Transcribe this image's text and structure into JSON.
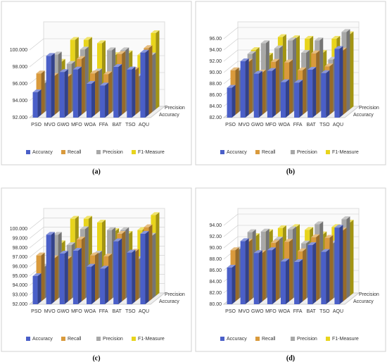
{
  "chart_data": [
    {
      "type": "bar",
      "panel_label": "(a)",
      "categories": [
        "PSO",
        "MVO",
        "GWO",
        "MFO",
        "WOA",
        "FFA",
        "BAT",
        "TSO",
        "AQU"
      ],
      "series": [
        {
          "name": "Accuracy",
          "color": "#4a5fc8",
          "values": [
            95.0,
            99.3,
            97.4,
            97.7,
            96.0,
            95.8,
            98.0,
            97.7,
            99.7
          ]
        },
        {
          "name": "Recall",
          "color": "#d99a3c",
          "values": [
            96.9,
            96.6,
            96.5,
            98.6,
            96.9,
            96.8,
            99.2,
            97.3,
            99.9
          ]
        },
        {
          "name": "Precision",
          "color": "#a8a8a8",
          "values": [
            95.4,
            98.8,
            97.7,
            99.4,
            96.8,
            99.3,
            99.3,
            96.2,
            98.7
          ]
        },
        {
          "name": "F1-Measure",
          "color": "#e8d41c",
          "values": [
            94.8,
            97.6,
            100.2,
            100.2,
            99.8,
            98.4,
            98.6,
            98.4,
            101.0
          ]
        }
      ],
      "ylim": [
        92,
        102
      ],
      "yticks": [
        {
          "value": 92,
          "label": "92.000"
        },
        {
          "value": 94,
          "label": "94.000"
        },
        {
          "value": 96,
          "label": "96.000"
        },
        {
          "value": 98,
          "label": "98.000"
        },
        {
          "value": 100,
          "label": "100.000"
        }
      ],
      "depth_labels": [
        "Precision",
        "Accuracy"
      ],
      "grid": true,
      "legend": "bottom"
    },
    {
      "type": "bar",
      "panel_label": "(b)",
      "categories": [
        "PSO",
        "MVO",
        "GWO",
        "MFO",
        "WOA",
        "FFA",
        "BAT",
        "TSO",
        "AQU"
      ],
      "series": [
        {
          "name": "Accuracy",
          "color": "#4a5fc8",
          "values": [
            87.3,
            92.0,
            89.8,
            90.3,
            88.3,
            88.2,
            90.5,
            89.9,
            94.2
          ]
        },
        {
          "name": "Recall",
          "color": "#d99a3c",
          "values": [
            89.9,
            91.4,
            89.5,
            91.4,
            91.3,
            89.9,
            92.9,
            90.6,
            93.4
          ]
        },
        {
          "name": "Precision",
          "color": "#a8a8a8",
          "values": [
            89.3,
            92.3,
            94.2,
            93.3,
            94.7,
            92.5,
            94.7,
            91.3,
            96.2
          ]
        },
        {
          "name": "F1-Measure",
          "color": "#e8d41c",
          "values": [
            88.0,
            92.5,
            91.5,
            94.8,
            94.6,
            94.5,
            92.0,
            94.5,
            95.3
          ]
        }
      ],
      "ylim": [
        82,
        97
      ],
      "yticks": [
        {
          "value": 82,
          "label": "82.00"
        },
        {
          "value": 84,
          "label": "84.00"
        },
        {
          "value": 86,
          "label": "86.00"
        },
        {
          "value": 88,
          "label": "88.00"
        },
        {
          "value": 90,
          "label": "90.00"
        },
        {
          "value": 92,
          "label": "92.00"
        },
        {
          "value": 94,
          "label": "94.00"
        },
        {
          "value": 96,
          "label": "96.00"
        }
      ],
      "depth_labels": [
        "Precision",
        "Accuracy"
      ],
      "grid": true,
      "legend": "bottom"
    },
    {
      "type": "bar",
      "panel_label": "(c)",
      "categories": [
        "PSO",
        "MVO",
        "GWO",
        "MFO",
        "WOA",
        "FFA",
        "BAT",
        "TSO",
        "AQU"
      ],
      "series": [
        {
          "name": "Accuracy",
          "color": "#4a5fc8",
          "values": [
            95.0,
            99.4,
            97.4,
            97.7,
            96.0,
            95.8,
            98.7,
            97.5,
            99.5
          ]
        },
        {
          "name": "Recall",
          "color": "#d99a3c",
          "values": [
            96.9,
            96.6,
            96.5,
            98.6,
            96.9,
            96.8,
            99.2,
            97.3,
            99.9
          ]
        },
        {
          "name": "Precision",
          "color": "#a8a8a8",
          "values": [
            95.4,
            98.8,
            97.7,
            99.4,
            96.8,
            99.3,
            99.3,
            96.2,
            98.7
          ]
        },
        {
          "name": "F1-Measure",
          "color": "#e8d41c",
          "values": [
            94.8,
            97.6,
            100.2,
            100.2,
            99.8,
            98.9,
            98.6,
            99.0,
            100.6
          ]
        }
      ],
      "ylim": [
        92,
        101
      ],
      "yticks": [
        {
          "value": 92,
          "label": "92.000"
        },
        {
          "value": 93,
          "label": "93.000"
        },
        {
          "value": 94,
          "label": "94.000"
        },
        {
          "value": 95,
          "label": "95.000"
        },
        {
          "value": 96,
          "label": "96.000"
        },
        {
          "value": 97,
          "label": "97.000"
        },
        {
          "value": 98,
          "label": "98.000"
        },
        {
          "value": 99,
          "label": "99.000"
        },
        {
          "value": 100,
          "label": "100.000"
        }
      ],
      "depth_labels": [
        "Precision",
        "Accuracy"
      ],
      "grid": true,
      "legend": "bottom"
    },
    {
      "type": "bar",
      "panel_label": "(d)",
      "categories": [
        "PSO",
        "MVO",
        "GWO",
        "MFO",
        "WOA",
        "FFA",
        "BAT",
        "TSO",
        "AQU"
      ],
      "series": [
        {
          "name": "Accuracy",
          "color": "#4a5fc8",
          "values": [
            86.5,
            91.2,
            89.1,
            89.6,
            87.6,
            87.5,
            90.5,
            89.3,
            93.6
          ]
        },
        {
          "name": "Recall",
          "color": "#d99a3c",
          "values": [
            89.1,
            90.6,
            88.6,
            90.4,
            90.6,
            88.9,
            91.4,
            91.3,
            92.6
          ]
        },
        {
          "name": "Precision",
          "color": "#a8a8a8",
          "values": [
            88.7,
            91.8,
            91.9,
            90.5,
            92.3,
            89.8,
            93.2,
            89.8,
            94.1
          ]
        },
        {
          "name": "F1-Measure",
          "color": "#e8d41c",
          "values": [
            88.0,
            90.6,
            91.3,
            92.0,
            92.2,
            91.7,
            90.9,
            92.2,
            93.0
          ]
        }
      ],
      "ylim": [
        80,
        95
      ],
      "yticks": [
        {
          "value": 80,
          "label": "80.00"
        },
        {
          "value": 82,
          "label": "82.00"
        },
        {
          "value": 84,
          "label": "84.00"
        },
        {
          "value": 86,
          "label": "86.00"
        },
        {
          "value": 88,
          "label": "88.00"
        },
        {
          "value": 90,
          "label": "90.00"
        },
        {
          "value": 92,
          "label": "92.00"
        },
        {
          "value": 94,
          "label": "94.00"
        }
      ],
      "depth_labels": [
        "Precision",
        "Accuracy"
      ],
      "grid": true,
      "legend": "bottom"
    }
  ]
}
